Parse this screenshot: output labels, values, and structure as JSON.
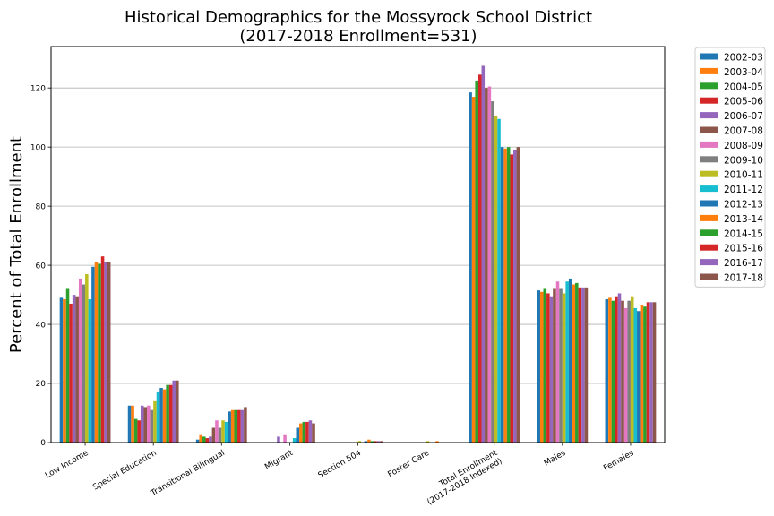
{
  "chart_data": {
    "type": "bar",
    "title": "Historical Demographics for the Mossyrock School District",
    "subtitle": "(2017-2018 Enrollment=531)",
    "xlabel": "",
    "ylabel": "Percent of Total Enrollment",
    "ylim": [
      0,
      134
    ],
    "yticks": [
      0,
      20,
      40,
      60,
      80,
      100,
      120
    ],
    "grid": "horizontal",
    "legend_position": "outside-right",
    "categories": [
      [
        "Low Income"
      ],
      [
        "Special Education"
      ],
      [
        "Transitional Bilingual"
      ],
      [
        "Migrant"
      ],
      [
        "Section 504"
      ],
      [
        "Foster Care"
      ],
      [
        "Total Enrollment",
        "(2017-2018 Indexed)"
      ],
      [
        "Males"
      ],
      [
        "Females"
      ]
    ],
    "series": [
      {
        "name": "2002-03",
        "color": "#1f77b4",
        "values": [
          49.0,
          12.5,
          1.0,
          0,
          0,
          0,
          118.5,
          51.5,
          48.5
        ]
      },
      {
        "name": "2003-04",
        "color": "#ff7f0e",
        "values": [
          48.5,
          12.5,
          2.5,
          0,
          0,
          0,
          117.0,
          51.0,
          49.0
        ]
      },
      {
        "name": "2004-05",
        "color": "#2ca02c",
        "values": [
          52.0,
          8.0,
          2.0,
          0,
          0,
          0,
          122.5,
          52.0,
          48.0
        ]
      },
      {
        "name": "2005-06",
        "color": "#d62728",
        "values": [
          47.0,
          7.5,
          1.5,
          0,
          0,
          0,
          124.5,
          50.5,
          49.5
        ]
      },
      {
        "name": "2006-07",
        "color": "#9467bd",
        "values": [
          50.0,
          12.5,
          2.0,
          2.0,
          0,
          0,
          127.5,
          49.5,
          50.5
        ]
      },
      {
        "name": "2007-08",
        "color": "#8c564b",
        "values": [
          49.5,
          12.0,
          5.0,
          0,
          0,
          0,
          120.0,
          52.0,
          48.0
        ]
      },
      {
        "name": "2008-09",
        "color": "#e377c2",
        "values": [
          55.5,
          12.5,
          7.5,
          2.5,
          0,
          0,
          120.5,
          54.5,
          45.5
        ]
      },
      {
        "name": "2009-10",
        "color": "#7f7f7f",
        "values": [
          53.5,
          11.0,
          5.0,
          0,
          0,
          0,
          115.5,
          52.0,
          48.0
        ]
      },
      {
        "name": "2010-11",
        "color": "#bcbd22",
        "values": [
          57.0,
          14.0,
          7.5,
          0,
          0.5,
          0.5,
          110.5,
          50.5,
          49.5
        ]
      },
      {
        "name": "2011-12",
        "color": "#17becf",
        "values": [
          48.5,
          17.0,
          7.0,
          1.5,
          0,
          0,
          109.5,
          54.5,
          45.5
        ]
      },
      {
        "name": "2012-13",
        "color": "#1f77b4",
        "values": [
          59.5,
          18.5,
          10.5,
          5.0,
          0.5,
          0,
          100.0,
          55.5,
          44.5
        ]
      },
      {
        "name": "2013-14",
        "color": "#ff7f0e",
        "values": [
          61.0,
          18.0,
          11.0,
          6.5,
          1.0,
          0.5,
          99.5,
          53.5,
          46.5
        ]
      },
      {
        "name": "2014-15",
        "color": "#2ca02c",
        "values": [
          60.5,
          19.5,
          11.0,
          7.0,
          0.5,
          0,
          100.0,
          54.0,
          46.0
        ]
      },
      {
        "name": "2015-16",
        "color": "#d62728",
        "values": [
          63.0,
          19.5,
          11.0,
          7.0,
          0.5,
          0,
          97.5,
          52.5,
          47.5
        ]
      },
      {
        "name": "2016-17",
        "color": "#9467bd",
        "values": [
          61.0,
          21.0,
          11.0,
          7.5,
          0.5,
          0,
          99.0,
          52.5,
          47.5
        ]
      },
      {
        "name": "2017-18",
        "color": "#8c564b",
        "values": [
          61.0,
          21.0,
          12.0,
          6.5,
          0.5,
          0,
          100.0,
          52.5,
          47.5
        ]
      }
    ]
  },
  "colors": {
    "grid": "#b0b0b0",
    "axis": "#000000"
  }
}
